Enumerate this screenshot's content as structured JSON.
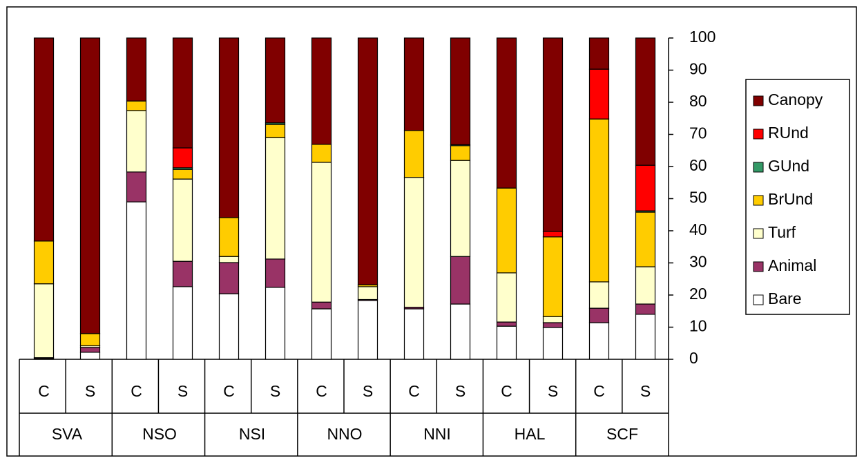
{
  "chart_data": {
    "type": "stacked_bar",
    "categories": [
      "C",
      "S",
      "C",
      "S",
      "C",
      "S",
      "C",
      "S",
      "C",
      "S",
      "C",
      "S",
      "C",
      "S"
    ],
    "groups": [
      "SVA",
      "NSO",
      "NSI",
      "NNO",
      "NNI",
      "HAL",
      "SCF"
    ],
    "series": [
      {
        "name": "Bare",
        "color": "#ffffff",
        "values": [
          0.2,
          2.2,
          49,
          22.6,
          20.4,
          22.4,
          15.7,
          18.3,
          15.7,
          17.2,
          10.3,
          9.9,
          11.4,
          14
        ]
      },
      {
        "name": "Animal",
        "color": "#993366",
        "values": [
          0.3,
          1.5,
          9.3,
          7.9,
          9.7,
          8.8,
          2.1,
          0.3,
          0.5,
          14.8,
          1.3,
          1.5,
          4.5,
          3.2
        ]
      },
      {
        "name": "Turf",
        "color": "#ffffcc",
        "values": [
          23,
          0.5,
          19.1,
          25.6,
          1.9,
          37.8,
          43.5,
          4,
          40.4,
          29.9,
          15.3,
          1.9,
          8.2,
          11.6
        ]
      },
      {
        "name": "BrUnd",
        "color": "#ffcc00",
        "values": [
          13.3,
          3.8,
          3,
          3,
          12.1,
          4.1,
          5.6,
          0.6,
          14.6,
          4.6,
          26.4,
          24.8,
          50.7,
          17
        ]
      },
      {
        "name": "GUnd",
        "color": "#339966",
        "values": [
          0,
          0,
          0,
          0.5,
          0,
          0.5,
          0,
          0,
          0,
          0.3,
          0,
          0,
          0,
          0.4
        ]
      },
      {
        "name": "RUnd",
        "color": "#ff0000",
        "values": [
          0,
          0,
          0,
          6.2,
          0,
          0,
          0,
          0,
          0,
          0,
          0,
          1.7,
          15.5,
          14.2
        ]
      },
      {
        "name": "Canopy",
        "color": "#800000",
        "values": [
          63.2,
          92,
          19.6,
          34.2,
          55.9,
          26.4,
          33.1,
          76.8,
          28.8,
          33.2,
          46.7,
          60.2,
          9.7,
          39.6
        ]
      }
    ],
    "ylim": [
      0,
      100
    ],
    "yticks": [
      0,
      10,
      20,
      30,
      40,
      50,
      60,
      70,
      80,
      90,
      100
    ],
    "legend": "right"
  }
}
